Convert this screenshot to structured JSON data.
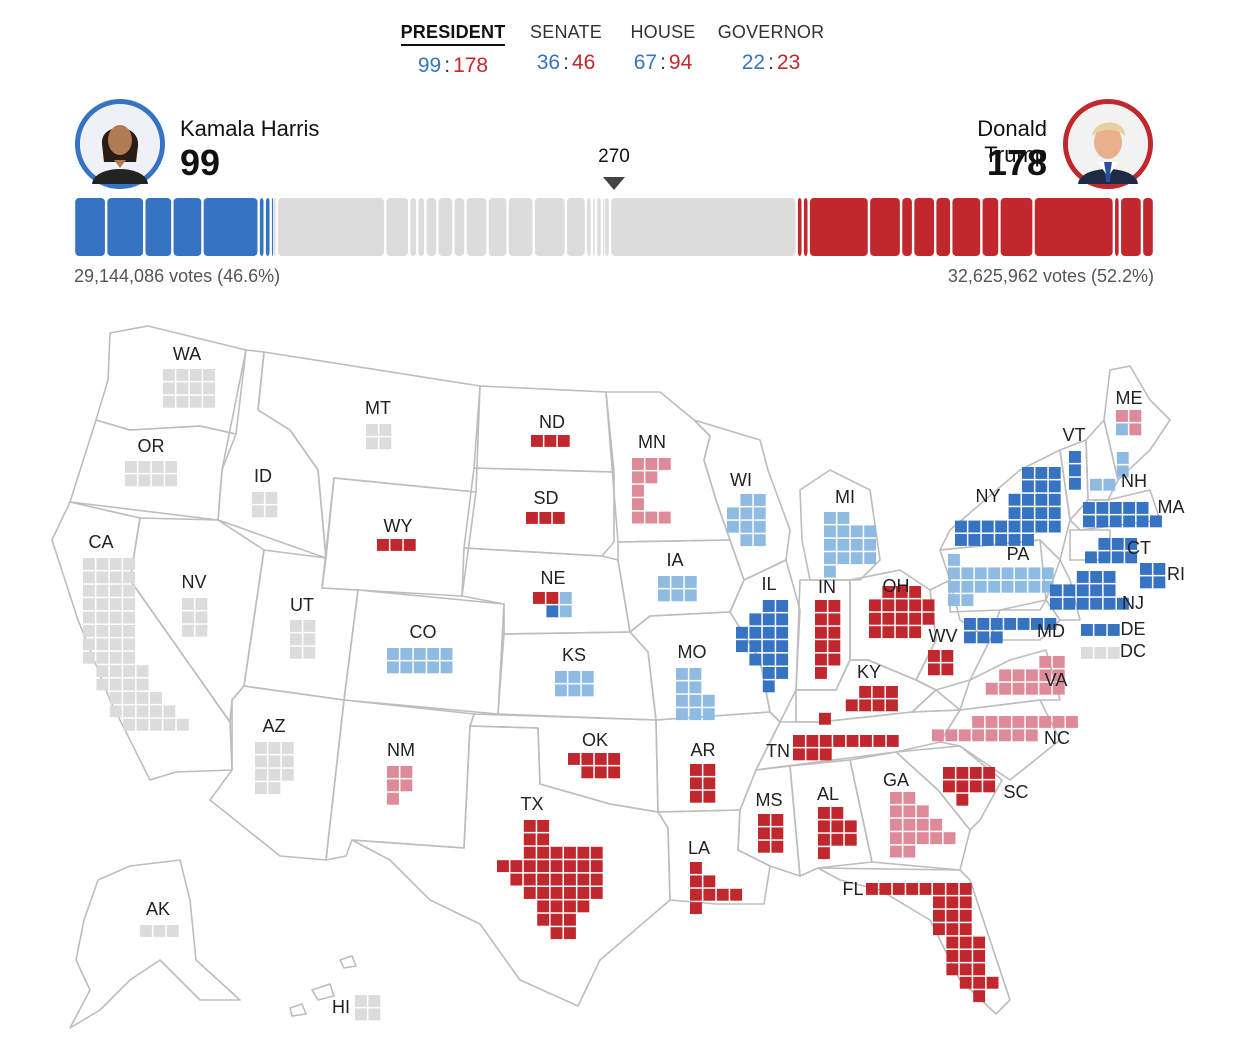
{
  "tabs": [
    {
      "label": "PRESIDENT",
      "dem": "99",
      "rep": "178",
      "active": true
    },
    {
      "label": "SENATE",
      "dem": "36",
      "rep": "46",
      "active": false
    },
    {
      "label": "HOUSE",
      "dem": "67",
      "rep": "94",
      "active": false
    },
    {
      "label": "GOVERNOR",
      "dem": "22",
      "rep": "23",
      "active": false
    }
  ],
  "candidates": {
    "dem": {
      "name": "Kamala Harris",
      "ev": "99",
      "votes": "29,144,086 votes (46.6%)"
    },
    "rep": {
      "name": "Donald Trump",
      "ev": "178",
      "votes": "32,625,962 votes (52.2%)"
    }
  },
  "threshold": "270",
  "colors": {
    "dem": "#3773c3",
    "lean_dem": "#8fbbe3",
    "rep": "#c0282d",
    "lean_rep": "#de8a99",
    "uncalled": "#dcdcdc",
    "outline": "#bdbdbd"
  },
  "states": [
    {
      "abbr": "WA",
      "ev": 12,
      "status": "uncalled"
    },
    {
      "abbr": "OR",
      "ev": 8,
      "status": "uncalled"
    },
    {
      "abbr": "CA",
      "ev": 54,
      "status": "uncalled"
    },
    {
      "abbr": "ID",
      "ev": 4,
      "status": "uncalled"
    },
    {
      "abbr": "NV",
      "ev": 6,
      "status": "uncalled"
    },
    {
      "abbr": "MT",
      "ev": 4,
      "status": "uncalled"
    },
    {
      "abbr": "UT",
      "ev": 6,
      "status": "uncalled"
    },
    {
      "abbr": "AZ",
      "ev": 11,
      "status": "uncalled"
    },
    {
      "abbr": "WY",
      "ev": 3,
      "status": "rep"
    },
    {
      "abbr": "CO",
      "ev": 10,
      "status": "lean_dem"
    },
    {
      "abbr": "NM",
      "ev": 5,
      "status": "lean_rep"
    },
    {
      "abbr": "ND",
      "ev": 3,
      "status": "rep"
    },
    {
      "abbr": "SD",
      "ev": 3,
      "status": "rep"
    },
    {
      "abbr": "NE",
      "ev": 5,
      "status": "split"
    },
    {
      "abbr": "KS",
      "ev": 6,
      "status": "lean_dem"
    },
    {
      "abbr": "OK",
      "ev": 7,
      "status": "rep"
    },
    {
      "abbr": "TX",
      "ev": 40,
      "status": "rep"
    },
    {
      "abbr": "MN",
      "ev": 10,
      "status": "lean_rep"
    },
    {
      "abbr": "IA",
      "ev": 6,
      "status": "lean_dem"
    },
    {
      "abbr": "MO",
      "ev": 10,
      "status": "lean_dem"
    },
    {
      "abbr": "AR",
      "ev": 6,
      "status": "rep"
    },
    {
      "abbr": "LA",
      "ev": 8,
      "status": "rep"
    },
    {
      "abbr": "WI",
      "ev": 10,
      "status": "lean_dem"
    },
    {
      "abbr": "IL",
      "ev": 19,
      "status": "dem"
    },
    {
      "abbr": "MI",
      "ev": 15,
      "status": "lean_dem"
    },
    {
      "abbr": "IN",
      "ev": 11,
      "status": "rep"
    },
    {
      "abbr": "OH",
      "ev": 17,
      "status": "rep"
    },
    {
      "abbr": "KY",
      "ev": 8,
      "status": "rep"
    },
    {
      "abbr": "TN",
      "ev": 11,
      "status": "rep"
    },
    {
      "abbr": "MS",
      "ev": 6,
      "status": "rep"
    },
    {
      "abbr": "AL",
      "ev": 9,
      "status": "rep"
    },
    {
      "abbr": "GA",
      "ev": 16,
      "status": "lean_rep"
    },
    {
      "abbr": "FL",
      "ev": 30,
      "status": "rep"
    },
    {
      "abbr": "SC",
      "ev": 9,
      "status": "rep"
    },
    {
      "abbr": "NC",
      "ev": 16,
      "status": "lean_rep"
    },
    {
      "abbr": "VA",
      "ev": 13,
      "status": "lean_rep"
    },
    {
      "abbr": "WV",
      "ev": 4,
      "status": "rep"
    },
    {
      "abbr": "PA",
      "ev": 19,
      "status": "lean_dem"
    },
    {
      "abbr": "NY",
      "ev": 28,
      "status": "dem"
    },
    {
      "abbr": "VT",
      "ev": 3,
      "status": "dem"
    },
    {
      "abbr": "NH",
      "ev": 4,
      "status": "lean_dem"
    },
    {
      "abbr": "ME",
      "ev": 4,
      "status": "split"
    },
    {
      "abbr": "MA",
      "ev": 11,
      "status": "dem"
    },
    {
      "abbr": "RI",
      "ev": 4,
      "status": "dem"
    },
    {
      "abbr": "CT",
      "ev": 7,
      "status": "dem"
    },
    {
      "abbr": "NJ",
      "ev": 14,
      "status": "dem"
    },
    {
      "abbr": "DE",
      "ev": 3,
      "status": "dem"
    },
    {
      "abbr": "MD",
      "ev": 10,
      "status": "dem"
    },
    {
      "abbr": "DC",
      "ev": 3,
      "status": "uncalled"
    },
    {
      "abbr": "AK",
      "ev": 3,
      "status": "uncalled"
    },
    {
      "abbr": "HI",
      "ev": 4,
      "status": "uncalled"
    }
  ]
}
